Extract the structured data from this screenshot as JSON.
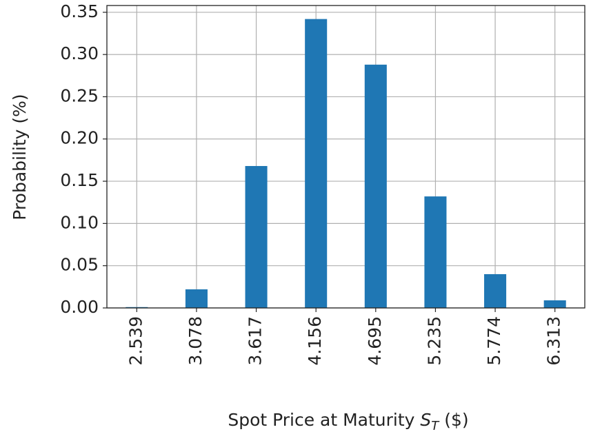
{
  "chart_data": {
    "type": "bar",
    "ylabel": "Probability (%)",
    "xlabel": [
      "Spot Price at Maturity ",
      "S",
      "T",
      " ($)"
    ],
    "categories": [
      "2.539",
      "3.078",
      "3.617",
      "4.156",
      "4.695",
      "5.235",
      "5.774",
      "6.313"
    ],
    "values": [
      0.001,
      0.022,
      0.168,
      0.342,
      0.288,
      0.132,
      0.04,
      0.009
    ],
    "color": "#1f77b4",
    "ylim": [
      0,
      0.358
    ],
    "yticks": [
      {
        "value": 0,
        "label": "0.00"
      },
      0.05,
      {
        "value": 0.1,
        "label": "0.10"
      },
      0.15,
      {
        "value": 0.2,
        "label": "0.20"
      },
      0.25,
      {
        "value": 0.3,
        "label": "0.30"
      },
      0.35
    ],
    "grid": true
  }
}
